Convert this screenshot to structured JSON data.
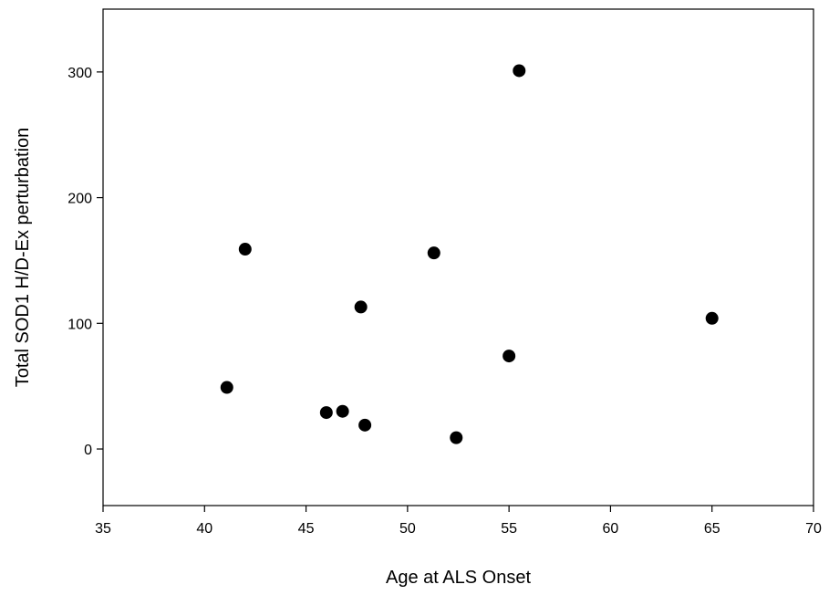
{
  "chart_data": {
    "type": "scatter",
    "title": "",
    "xlabel": "Age at ALS Onset",
    "ylabel": "Total SOD1 H/D-Ex perturbation",
    "xlim": [
      35,
      70
    ],
    "ylim": [
      -45,
      350
    ],
    "xticks": [
      35,
      40,
      45,
      50,
      55,
      60,
      65,
      70
    ],
    "yticks": [
      0,
      100,
      200,
      300
    ],
    "grid": false,
    "legend": "none",
    "marker_color": "#000000",
    "series": [
      {
        "points": [
          {
            "x": 41.1,
            "y": 49
          },
          {
            "x": 42.0,
            "y": 159
          },
          {
            "x": 46.0,
            "y": 29
          },
          {
            "x": 46.8,
            "y": 30
          },
          {
            "x": 47.7,
            "y": 113
          },
          {
            "x": 47.9,
            "y": 19
          },
          {
            "x": 51.3,
            "y": 156
          },
          {
            "x": 52.4,
            "y": 9
          },
          {
            "x": 55.0,
            "y": 74
          },
          {
            "x": 55.5,
            "y": 301
          },
          {
            "x": 65.0,
            "y": 104
          }
        ]
      }
    ]
  }
}
